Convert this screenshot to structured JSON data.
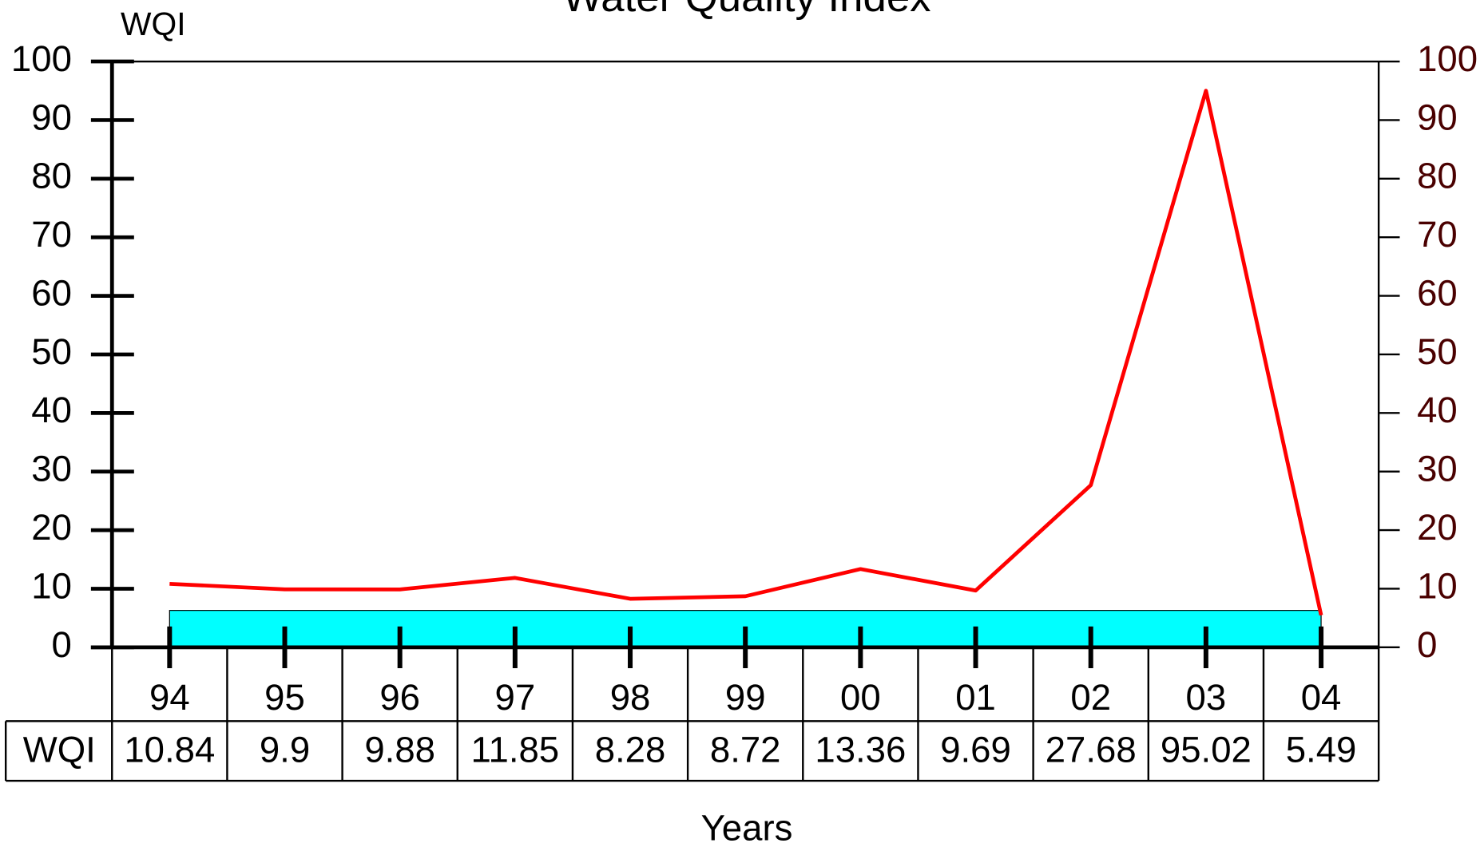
{
  "chart_data": {
    "type": "line",
    "title": "Water Quality Index",
    "y_label": "WQI",
    "x_label": "Years",
    "categories": [
      "94",
      "95",
      "96",
      "97",
      "98",
      "99",
      "00",
      "01",
      "02",
      "03",
      "04"
    ],
    "series": [
      {
        "name": "WQI",
        "color": "#ff0000",
        "values": [
          10.84,
          9.9,
          9.88,
          11.85,
          8.28,
          8.72,
          13.36,
          9.69,
          27.68,
          95.02,
          5.49
        ]
      }
    ],
    "band": {
      "range": [
        0,
        6.3
      ],
      "color": "#00ffff"
    },
    "ylim": [
      0,
      100
    ],
    "yticks": [
      0,
      10,
      20,
      30,
      40,
      50,
      60,
      70,
      80,
      90,
      100
    ],
    "y2lim": [
      0,
      100
    ],
    "y2ticks": [
      0,
      10,
      20,
      30,
      40,
      50,
      60,
      70,
      80,
      90,
      100
    ],
    "y2color": "#4a0000"
  }
}
